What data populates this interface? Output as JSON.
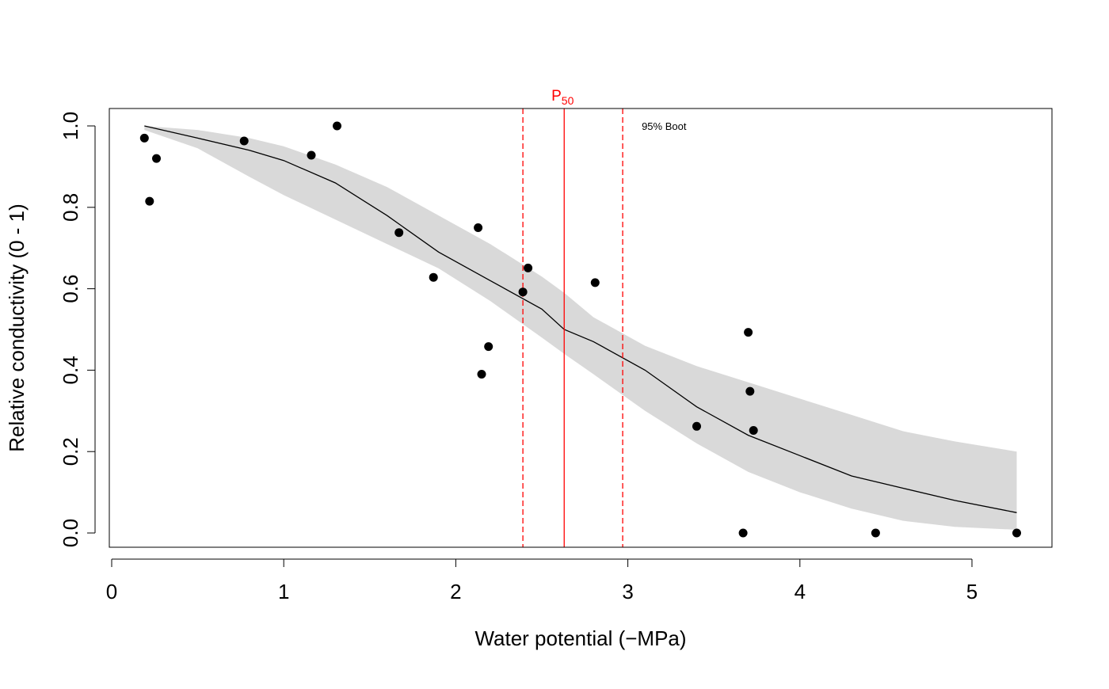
{
  "chart_data": {
    "type": "scatter",
    "title": "",
    "xlabel": "Water potential  (−MPa)",
    "ylabel": "Relative conductivity (0 - 1)",
    "xlim": [
      0,
      5.45
    ],
    "ylim": [
      0,
      1.0
    ],
    "x_ticks": [
      "0",
      "1",
      "2",
      "3",
      "4",
      "5"
    ],
    "y_ticks": [
      "0.0",
      "0.2",
      "0.4",
      "0.6",
      "0.8",
      "1.0"
    ],
    "grid": false,
    "points": [
      {
        "x": 0.19,
        "y": 0.97
      },
      {
        "x": 0.22,
        "y": 0.815
      },
      {
        "x": 0.26,
        "y": 0.92
      },
      {
        "x": 0.77,
        "y": 0.963
      },
      {
        "x": 1.16,
        "y": 0.928
      },
      {
        "x": 1.31,
        "y": 1.0
      },
      {
        "x": 1.67,
        "y": 0.738
      },
      {
        "x": 1.87,
        "y": 0.628
      },
      {
        "x": 2.13,
        "y": 0.75
      },
      {
        "x": 2.15,
        "y": 0.39
      },
      {
        "x": 2.19,
        "y": 0.458
      },
      {
        "x": 2.39,
        "y": 0.592
      },
      {
        "x": 2.42,
        "y": 0.651
      },
      {
        "x": 2.81,
        "y": 0.615
      },
      {
        "x": 3.4,
        "y": 0.262
      },
      {
        "x": 3.67,
        "y": 0.0
      },
      {
        "x": 3.7,
        "y": 0.493
      },
      {
        "x": 3.71,
        "y": 0.348
      },
      {
        "x": 3.73,
        "y": 0.252
      },
      {
        "x": 4.44,
        "y": 0.0
      },
      {
        "x": 5.26,
        "y": 0.0
      }
    ],
    "fit_curve": {
      "x": [
        0.19,
        0.5,
        0.8,
        1.0,
        1.3,
        1.6,
        1.9,
        2.2,
        2.5,
        2.63,
        2.8,
        3.1,
        3.4,
        3.7,
        4.0,
        4.3,
        4.6,
        4.9,
        5.26
      ],
      "y": [
        1.0,
        0.97,
        0.94,
        0.915,
        0.86,
        0.78,
        0.69,
        0.62,
        0.55,
        0.5,
        0.47,
        0.4,
        0.31,
        0.24,
        0.19,
        0.14,
        0.11,
        0.08,
        0.05
      ]
    },
    "confidence_band": {
      "label": "95% Boot",
      "x": [
        0.19,
        0.5,
        0.8,
        1.0,
        1.3,
        1.6,
        1.9,
        2.2,
        2.5,
        2.63,
        2.8,
        3.1,
        3.4,
        3.7,
        4.0,
        4.3,
        4.6,
        4.9,
        5.26
      ],
      "upper": [
        1.0,
        0.99,
        0.97,
        0.95,
        0.905,
        0.85,
        0.78,
        0.71,
        0.63,
        0.59,
        0.53,
        0.46,
        0.41,
        0.37,
        0.33,
        0.29,
        0.25,
        0.225,
        0.2
      ],
      "lower": [
        0.99,
        0.945,
        0.875,
        0.83,
        0.77,
        0.71,
        0.65,
        0.57,
        0.48,
        0.44,
        0.39,
        0.3,
        0.22,
        0.15,
        0.1,
        0.06,
        0.03,
        0.015,
        0.008
      ]
    },
    "p50": {
      "label": "P",
      "subscript": "50",
      "value": 2.63,
      "ci_lower": 2.39,
      "ci_upper": 2.97,
      "color": "#ff0000"
    },
    "band_color": "#d9d9d9",
    "point_color": "#000000",
    "curve_color": "#000000"
  }
}
